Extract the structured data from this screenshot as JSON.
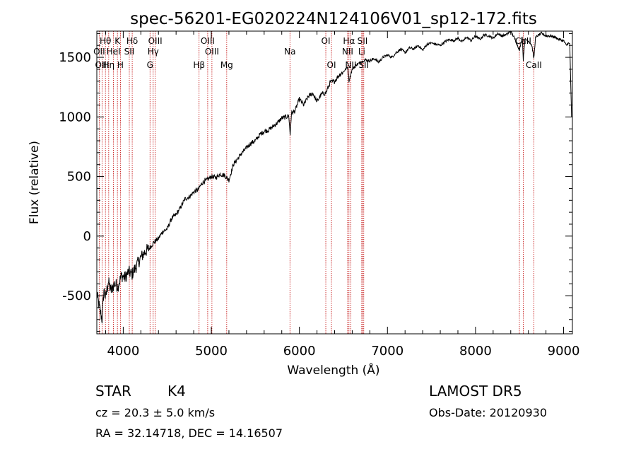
{
  "chart_data": {
    "type": "line",
    "title": "spec-56201-EG020224N124106V01_sp12-172.fits",
    "xlabel": "Wavelength (Å)",
    "ylabel": "Flux (relative)",
    "xlim": [
      3700,
      9100
    ],
    "ylim": [
      -820,
      1720
    ],
    "xticks": [
      4000,
      5000,
      6000,
      7000,
      8000,
      9000
    ],
    "yticks": [
      -500,
      0,
      500,
      1000,
      1500
    ],
    "grid": false,
    "series": [
      {
        "x": [
          3700,
          3730,
          3760,
          3780,
          3800,
          3830,
          3860,
          3900,
          3940,
          3980,
          4020,
          4060,
          4100,
          4150,
          4200,
          4250,
          4300,
          4350,
          4400,
          4450,
          4500,
          4550,
          4600,
          4650,
          4700,
          4750,
          4800,
          4850,
          4900,
          4950,
          5000,
          5050,
          5100,
          5150,
          5200,
          5250,
          5300,
          5350,
          5400,
          5450,
          5500,
          5550,
          5600,
          5650,
          5700,
          5750,
          5800,
          5850,
          5880,
          5895,
          5910,
          5950,
          6000,
          6050,
          6100,
          6150,
          6200,
          6250,
          6300,
          6350,
          6400,
          6450,
          6500,
          6550,
          6563,
          6580,
          6600,
          6650,
          6700,
          6750,
          6800,
          6850,
          6900,
          6950,
          7000,
          7050,
          7100,
          7150,
          7200,
          7250,
          7300,
          7350,
          7400,
          7450,
          7500,
          7550,
          7600,
          7650,
          7700,
          7750,
          7800,
          7850,
          7900,
          7950,
          8000,
          8050,
          8100,
          8150,
          8200,
          8250,
          8300,
          8350,
          8400,
          8450,
          8500,
          8530,
          8542,
          8560,
          8600,
          8640,
          8662,
          8680,
          8700,
          8750,
          8800,
          8850,
          8900,
          8950,
          9000,
          9030,
          9050,
          9070,
          9090
        ],
        "y": [
          -480,
          -600,
          -700,
          -450,
          -520,
          -380,
          -460,
          -400,
          -420,
          -330,
          -350,
          -300,
          -320,
          -250,
          -180,
          -130,
          -100,
          -50,
          -20,
          40,
          60,
          150,
          180,
          240,
          310,
          330,
          370,
          390,
          450,
          470,
          500,
          490,
          520,
          510,
          470,
          600,
          650,
          700,
          740,
          780,
          800,
          850,
          880,
          890,
          920,
          950,
          990,
          1000,
          1010,
          850,
          1030,
          1050,
          1150,
          1100,
          1170,
          1200,
          1130,
          1190,
          1200,
          1290,
          1300,
          1350,
          1380,
          1420,
          1300,
          1350,
          1400,
          1440,
          1460,
          1480,
          1470,
          1490,
          1460,
          1500,
          1520,
          1500,
          1540,
          1570,
          1540,
          1580,
          1570,
          1600,
          1560,
          1610,
          1620,
          1610,
          1600,
          1630,
          1650,
          1640,
          1660,
          1630,
          1670,
          1640,
          1680,
          1650,
          1690,
          1680,
          1660,
          1700,
          1680,
          1690,
          1720,
          1650,
          1560,
          1680,
          1480,
          1650,
          1640,
          1600,
          1490,
          1660,
          1680,
          1700,
          1680,
          1680,
          1670,
          1650,
          1640,
          1600,
          1620,
          1610,
          1000
        ]
      }
    ],
    "spectral_lines": [
      {
        "name": "Hθ",
        "wavelength": 3798,
        "row": 1
      },
      {
        "name": "OII",
        "wavelength": 3727,
        "row": 2
      },
      {
        "name": "OIII",
        "wavelength": 3760,
        "row": 3
      },
      {
        "name": "K",
        "wavelength": 3934,
        "row": 1
      },
      {
        "name": "HeI",
        "wavelength": 3889,
        "row": 2
      },
      {
        "name": "Hη",
        "wavelength": 3835,
        "row": 3
      },
      {
        "name": "H",
        "wavelength": 3968,
        "row": 3
      },
      {
        "name": "Hδ",
        "wavelength": 4102,
        "row": 1
      },
      {
        "name": "SII",
        "wavelength": 4069,
        "row": 2
      },
      {
        "name": "OIII",
        "wavelength": 4363,
        "row": 1
      },
      {
        "name": "Hγ",
        "wavelength": 4340,
        "row": 2
      },
      {
        "name": "G",
        "wavelength": 4304,
        "row": 3
      },
      {
        "name": "OIII",
        "wavelength": 4959,
        "row": 1
      },
      {
        "name": "OIII",
        "wavelength": 5007,
        "row": 2
      },
      {
        "name": "Hβ",
        "wavelength": 4861,
        "row": 3
      },
      {
        "name": "Mg",
        "wavelength": 5175,
        "row": 3
      },
      {
        "name": "Na",
        "wavelength": 5893,
        "row": 2
      },
      {
        "name": "OI",
        "wavelength": 6300,
        "row": 1
      },
      {
        "name": "OI",
        "wavelength": 6364,
        "row": 3
      },
      {
        "name": "Hα",
        "wavelength": 6563,
        "row": 1
      },
      {
        "name": "NII",
        "wavelength": 6548,
        "row": 2
      },
      {
        "name": "NII",
        "wavelength": 6584,
        "row": 3
      },
      {
        "name": "SII",
        "wavelength": 6717,
        "row": 1
      },
      {
        "name": "Li",
        "wavelength": 6708,
        "row": 2
      },
      {
        "name": "SII",
        "wavelength": 6731,
        "row": 3
      },
      {
        "name": "CaII",
        "wavelength": 8542,
        "row": 1
      },
      {
        "name": "CaII",
        "wavelength": 8662,
        "row": 3
      }
    ],
    "extra_line_positions": [
      8498
    ]
  },
  "info": {
    "class": "STAR",
    "subclass": "K4",
    "cz": "cz = 20.3 ± 5.0 km/s",
    "coords": "RA =  32.14718, DEC =  14.16507",
    "survey": "LAMOST DR5",
    "obs_date": "Obs-Date: 20120930"
  }
}
